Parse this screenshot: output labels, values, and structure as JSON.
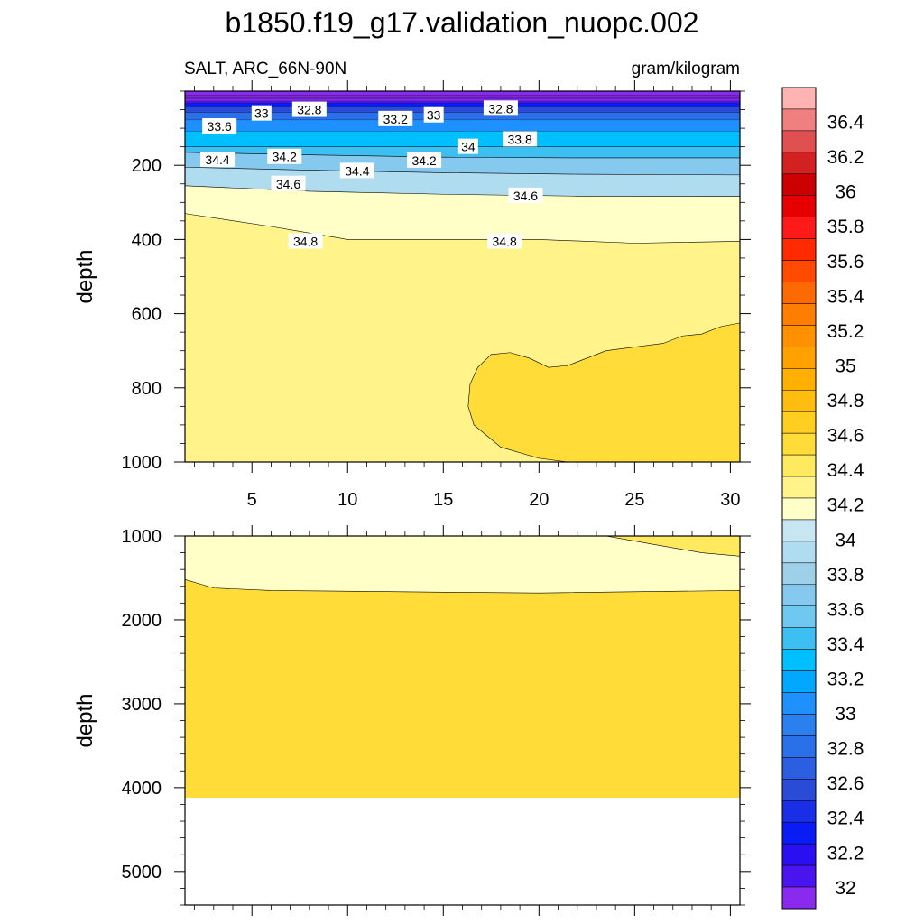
{
  "title": "b1850.f19_g17.validation_nuopc.002",
  "subtitle_left": "SALT, ARC_66N-90N",
  "subtitle_right": "gram/kilogram",
  "chart_data": [
    {
      "type": "contour",
      "panel": "upper",
      "ylabel": "depth",
      "xlim": [
        1.5,
        30.5
      ],
      "ylim": [
        1000,
        0
      ],
      "x_ticks": [
        5,
        10,
        15,
        20,
        25,
        30
      ],
      "y_ticks": [
        200,
        400,
        600,
        800,
        1000
      ],
      "y_minor_step": 50,
      "background_level": 34.8,
      "bands": [
        {
          "level": 34.2,
          "boundary": [
            [
              1.5,
              165
            ],
            [
              8,
              172
            ],
            [
              15,
              178
            ],
            [
              22,
              180
            ],
            [
              30.5,
              180
            ]
          ]
        },
        {
          "level": 34.4,
          "boundary": [
            [
              1.5,
              205
            ],
            [
              8,
              213
            ],
            [
              15,
              220
            ],
            [
              22,
              224
            ],
            [
              30.5,
              226
            ]
          ]
        },
        {
          "level": 34.6,
          "boundary": [
            [
              1.5,
              255
            ],
            [
              8,
              270
            ],
            [
              15,
              278
            ],
            [
              22,
              283
            ],
            [
              30.5,
              284
            ]
          ]
        },
        {
          "level": 34.8,
          "boundary": [
            [
              1.5,
              330
            ],
            [
              6,
              365
            ],
            [
              10,
              400
            ],
            [
              15,
              400
            ],
            [
              20,
              400
            ],
            [
              25,
              410
            ],
            [
              30.5,
              405
            ]
          ]
        }
      ],
      "fresh_layers": [
        {
          "level": 32.0,
          "top": 0,
          "bottom": 12
        },
        {
          "level": 32.2,
          "top": 12,
          "bottom": 15
        },
        {
          "level": 32.4,
          "top": 15,
          "bottom": 18
        },
        {
          "level": 32.6,
          "top": 18,
          "bottom": 22
        },
        {
          "level": 32.8,
          "top": 22,
          "bottom": 27
        },
        {
          "level": 33.0,
          "top": 27,
          "bottom": 33
        },
        {
          "level": 33.2,
          "top": 33,
          "bottom": 43
        },
        {
          "level": 33.4,
          "top": 43,
          "bottom": 58
        },
        {
          "level": 33.6,
          "top": 58,
          "bottom": 78
        },
        {
          "level": 33.8,
          "top": 78,
          "bottom": 108
        },
        {
          "level": 34.0,
          "top": 108,
          "bottom": 150
        }
      ],
      "contours": [
        {
          "level": 35.0,
          "closed": true,
          "points": [
            [
              16.4,
              790
            ],
            [
              16.8,
              745
            ],
            [
              17.5,
              710
            ],
            [
              18.5,
              705
            ],
            [
              19.5,
              720
            ],
            [
              20.5,
              745
            ],
            [
              21.5,
              740
            ],
            [
              22.5,
              720
            ],
            [
              23.5,
              700
            ],
            [
              25,
              690
            ],
            [
              26.5,
              680
            ],
            [
              27.5,
              660
            ],
            [
              28.5,
              655
            ],
            [
              29.5,
              635
            ],
            [
              30.5,
              625
            ],
            [
              30.5,
              1000
            ],
            [
              21.5,
              1000
            ],
            [
              20,
              990
            ],
            [
              18,
              960
            ],
            [
              16.6,
              900
            ],
            [
              16.3,
              850
            ]
          ]
        }
      ],
      "labels": [
        {
          "text": "33",
          "x": 5.5,
          "y": 60
        },
        {
          "text": "32.8",
          "x": 8,
          "y": 50
        },
        {
          "text": "33.6",
          "x": 3.3,
          "y": 95
        },
        {
          "text": "33.2",
          "x": 12.5,
          "y": 75
        },
        {
          "text": "33",
          "x": 14.5,
          "y": 65
        },
        {
          "text": "32.8",
          "x": 18,
          "y": 47
        },
        {
          "text": "34",
          "x": 16.3,
          "y": 150
        },
        {
          "text": "33.8",
          "x": 19,
          "y": 130
        },
        {
          "text": "34.4",
          "x": 3.2,
          "y": 185
        },
        {
          "text": "34.2",
          "x": 6.7,
          "y": 177
        },
        {
          "text": "34.4",
          "x": 10.5,
          "y": 215
        },
        {
          "text": "34.2",
          "x": 14,
          "y": 187
        },
        {
          "text": "34.6",
          "x": 6.9,
          "y": 250
        },
        {
          "text": "34.6",
          "x": 19.3,
          "y": 282
        },
        {
          "text": "34.8",
          "x": 7.8,
          "y": 405
        },
        {
          "text": "34.8",
          "x": 18.2,
          "y": 405
        }
      ]
    },
    {
      "type": "contour",
      "panel": "lower",
      "ylabel": "depth",
      "xlim": [
        1.5,
        30.5
      ],
      "ylim": [
        5400,
        1000
      ],
      "y_ticks": [
        1000,
        2000,
        3000,
        4000,
        5000
      ],
      "y_minor_step": 200,
      "background_level": 35.0,
      "bottom_depth": 4120,
      "bands": [
        {
          "level": 34.8,
          "boundary": [
            [
              1.5,
              1520
            ],
            [
              3,
              1620
            ],
            [
              6,
              1650
            ],
            [
              15,
              1670
            ],
            [
              20,
              1680
            ],
            [
              25,
              1665
            ],
            [
              30.5,
              1650
            ]
          ]
        }
      ],
      "corner": {
        "level": 35.0,
        "points": [
          [
            23.5,
            1000
          ],
          [
            30.5,
            1000
          ],
          [
            30.5,
            1240
          ],
          [
            28.5,
            1200
          ],
          [
            26.5,
            1120
          ],
          [
            24.5,
            1040
          ]
        ]
      },
      "contours": []
    }
  ],
  "colorbar": {
    "levels": [
      "36.4",
      "36.2",
      "36",
      "35.8",
      "35.6",
      "35.4",
      "35.2",
      "35",
      "34.8",
      "34.6",
      "34.4",
      "34.2",
      "34",
      "33.8",
      "33.6",
      "33.4",
      "33.2",
      "33",
      "32.8",
      "32.6",
      "32.4",
      "32.2",
      "32"
    ],
    "colors": [
      "#ffb3b3",
      "#f08080",
      "#e05050",
      "#d32020",
      "#cc0000",
      "#e60000",
      "#ff1a1a",
      "#ff2a00",
      "#ff4a00",
      "#ff6a00",
      "#ff7d00",
      "#ff9000",
      "#ffa200",
      "#ffb000",
      "#ffbd10",
      "#ffce1f",
      "#ffdc38",
      "#ffe95e",
      "#fff38a",
      "#ffffc8",
      "#c8e6f2",
      "#b0dcef",
      "#9ed0ea",
      "#86c9ee",
      "#6ec8f0",
      "#3dbff2",
      "#00bfff",
      "#00a8ff",
      "#1e90ff",
      "#2b80f0",
      "#2a70e8",
      "#2b5ee0",
      "#2a4ad8",
      "#1a2ee8",
      "#0a1cf5",
      "#2a10f0",
      "#4a14ee",
      "#8a2aee"
    ],
    "value_steps": [
      36.6,
      36.5,
      36.4,
      36.3,
      36.2,
      36.1,
      36.0,
      35.9,
      35.8,
      35.7,
      35.6,
      35.5,
      35.4,
      35.3,
      35.2,
      35.1,
      35.0,
      34.9,
      34.8,
      34.7,
      34.6,
      34.5,
      34.4,
      34.3,
      34.2,
      34.1,
      34.0,
      33.9,
      33.8,
      33.7,
      33.6,
      33.5,
      33.4,
      33.3,
      33.2,
      33.1,
      33.0,
      32.9
    ]
  }
}
